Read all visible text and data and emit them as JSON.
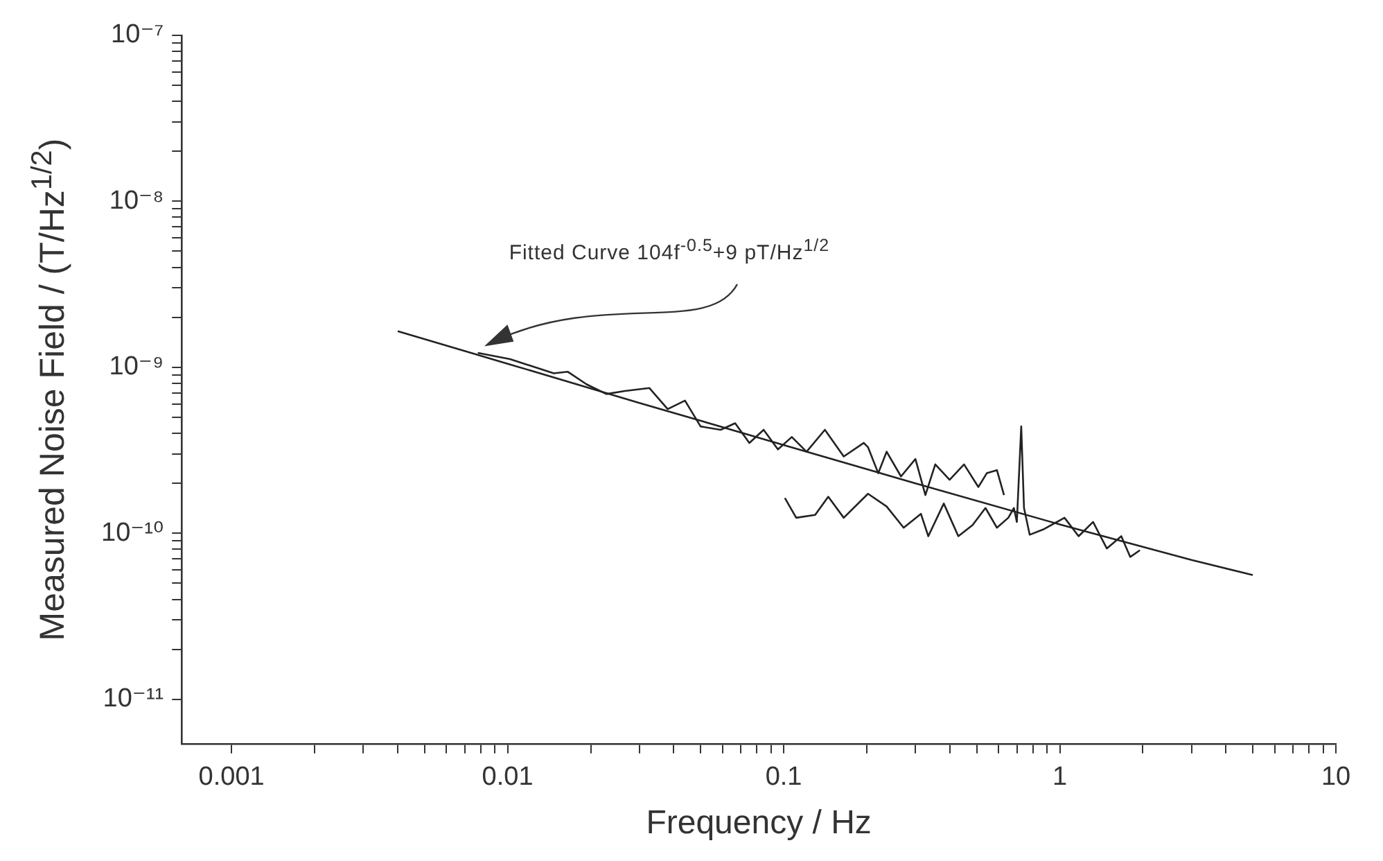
{
  "chart_data": {
    "type": "line",
    "xlabel": "Frequency / Hz",
    "ylabel": "Measured Noise Field / (T/Hz$^{1/2}$)",
    "log": "xy",
    "grid": false,
    "legend": false,
    "xlim": [
      0.00066,
      10
    ],
    "ylim": [
      5.4e-12,
      1e-07
    ],
    "xticks": [
      0.001,
      {
        "value": 0.002,
        "label": null
      },
      {
        "value": 0.003,
        "label": null
      },
      {
        "value": 0.004,
        "label": null
      },
      {
        "value": 0.005,
        "label": null
      },
      {
        "value": 0.006,
        "label": null
      },
      {
        "value": 0.007,
        "label": null
      },
      {
        "value": 0.008,
        "label": null
      },
      {
        "value": 0.009,
        "label": null
      },
      0.01,
      {
        "value": 0.02,
        "label": null
      },
      {
        "value": 0.03,
        "label": null
      },
      {
        "value": 0.04,
        "label": null
      },
      {
        "value": 0.05,
        "label": null
      },
      {
        "value": 0.06,
        "label": null
      },
      {
        "value": 0.07,
        "label": null
      },
      {
        "value": 0.08,
        "label": null
      },
      {
        "value": 0.09,
        "label": null
      },
      0.1,
      {
        "value": 0.2,
        "label": null
      },
      {
        "value": 0.3,
        "label": null
      },
      {
        "value": 0.4,
        "label": null
      },
      {
        "value": 0.5,
        "label": null
      },
      {
        "value": 0.6,
        "label": null
      },
      {
        "value": 0.7,
        "label": null
      },
      {
        "value": 0.8,
        "label": null
      },
      {
        "value": 0.9,
        "label": null
      },
      1,
      {
        "value": 2,
        "label": null
      },
      {
        "value": 3,
        "label": null
      },
      {
        "value": 4,
        "label": null
      },
      {
        "value": 5,
        "label": null
      },
      {
        "value": 6,
        "label": null
      },
      {
        "value": 7,
        "label": null
      },
      {
        "value": 8,
        "label": null
      },
      {
        "value": 9,
        "label": null
      },
      10
    ],
    "yticks": [
      {
        "value": 1e-11,
        "label": "10⁻¹¹"
      },
      {
        "value": 2e-11,
        "label": null
      },
      {
        "value": 3e-11,
        "label": null
      },
      {
        "value": 4e-11,
        "label": null
      },
      {
        "value": 5e-11,
        "label": null
      },
      {
        "value": 6e-11,
        "label": null
      },
      {
        "value": 7e-11,
        "label": null
      },
      {
        "value": 8e-11,
        "label": null
      },
      {
        "value": 9e-11,
        "label": null
      },
      {
        "value": 1e-10,
        "label": "10⁻¹⁰"
      },
      {
        "value": 2e-10,
        "label": null
      },
      {
        "value": 3e-10,
        "label": null
      },
      {
        "value": 4e-10,
        "label": null
      },
      {
        "value": 5e-10,
        "label": null
      },
      {
        "value": 6e-10,
        "label": null
      },
      {
        "value": 7e-10,
        "label": null
      },
      {
        "value": 8e-10,
        "label": null
      },
      {
        "value": 9e-10,
        "label": null
      },
      {
        "value": 1e-09,
        "label": "10⁻⁹"
      },
      {
        "value": 2e-09,
        "label": null
      },
      {
        "value": 3e-09,
        "label": null
      },
      {
        "value": 4e-09,
        "label": null
      },
      {
        "value": 5e-09,
        "label": null
      },
      {
        "value": 6e-09,
        "label": null
      },
      {
        "value": 7e-09,
        "label": null
      },
      {
        "value": 8e-09,
        "label": null
      },
      {
        "value": 9e-09,
        "label": null
      },
      {
        "value": 1e-08,
        "label": "10⁻⁸"
      },
      {
        "value": 2e-08,
        "label": null
      },
      {
        "value": 3e-08,
        "label": null
      },
      {
        "value": 4e-08,
        "label": null
      },
      {
        "value": 5e-08,
        "label": null
      },
      {
        "value": 6e-08,
        "label": null
      },
      {
        "value": 7e-08,
        "label": null
      },
      {
        "value": 8e-08,
        "label": null
      },
      {
        "value": 9e-08,
        "label": null
      },
      {
        "value": 1e-07,
        "label": "10⁻⁷"
      }
    ],
    "series": [
      {
        "color": "#222222",
        "x": [
          0.004,
          0.01,
          0.03,
          0.1,
          0.3,
          1,
          3,
          5
        ],
        "values": [
          1.65e-09,
          1.05e-09,
          6.1e-10,
          3.4e-10,
          2e-10,
          1.13e-10,
          6.9e-11,
          5.6e-11
        ]
      },
      {
        "color": "#222222",
        "x": [
          0.0078,
          0.0102,
          0.0147,
          0.0165,
          0.0193,
          0.0228,
          0.0266,
          0.0326,
          0.038,
          0.0439,
          0.05,
          0.0591,
          0.0667,
          0.0751,
          0.0846,
          0.0953,
          0.107,
          0.121,
          0.141,
          0.165,
          0.195,
          0.202,
          0.22,
          0.236,
          0.266,
          0.3,
          0.326,
          0.354,
          0.399,
          0.45,
          0.507,
          0.544,
          0.592,
          0.628
        ],
        "values": [
          1.22e-09,
          1.12e-09,
          9.2e-10,
          9.4e-10,
          7.9e-10,
          6.9e-10,
          7.2e-10,
          7.5e-10,
          5.6e-10,
          6.3e-10,
          4.4e-10,
          4.2e-10,
          4.6e-10,
          3.5e-10,
          4.2e-10,
          3.2e-10,
          3.8e-10,
          3.1e-10,
          4.2e-10,
          2.9e-10,
          3.5e-10,
          3.3e-10,
          2.3e-10,
          3.1e-10,
          2.2e-10,
          2.8e-10,
          1.7e-10,
          2.6e-10,
          2.1e-10,
          2.6e-10,
          1.9e-10,
          2.3e-10,
          2.4e-10,
          1.7e-10
        ]
      },
      {
        "color": "#222222",
        "x": [
          0.101,
          0.111,
          0.13,
          0.145,
          0.165,
          0.202,
          0.236,
          0.272,
          0.314,
          0.334,
          0.38,
          0.429,
          0.483,
          0.538,
          0.592,
          0.651,
          0.682,
          0.699,
          0.725,
          0.742,
          0.778,
          0.877,
          1.04,
          1.17,
          1.32,
          1.48,
          1.67,
          1.8,
          1.95
        ],
        "values": [
          1.63e-10,
          1.24e-10,
          1.29e-10,
          1.66e-10,
          1.24e-10,
          1.73e-10,
          1.45e-10,
          1.08e-10,
          1.31e-10,
          9.6e-11,
          1.51e-10,
          9.6e-11,
          1.12e-10,
          1.42e-10,
          1.08e-10,
          1.24e-10,
          1.42e-10,
          1.17e-10,
          4.4e-10,
          1.42e-10,
          9.8e-11,
          1.06e-10,
          1.24e-10,
          9.6e-11,
          1.17e-10,
          8.1e-11,
          9.6e-11,
          7.2e-11,
          7.9e-11
        ]
      }
    ],
    "annotations": [
      "Fitted Curve 104f$^{-0.5}$+9 pT/Hz$^{1/2}$"
    ]
  }
}
